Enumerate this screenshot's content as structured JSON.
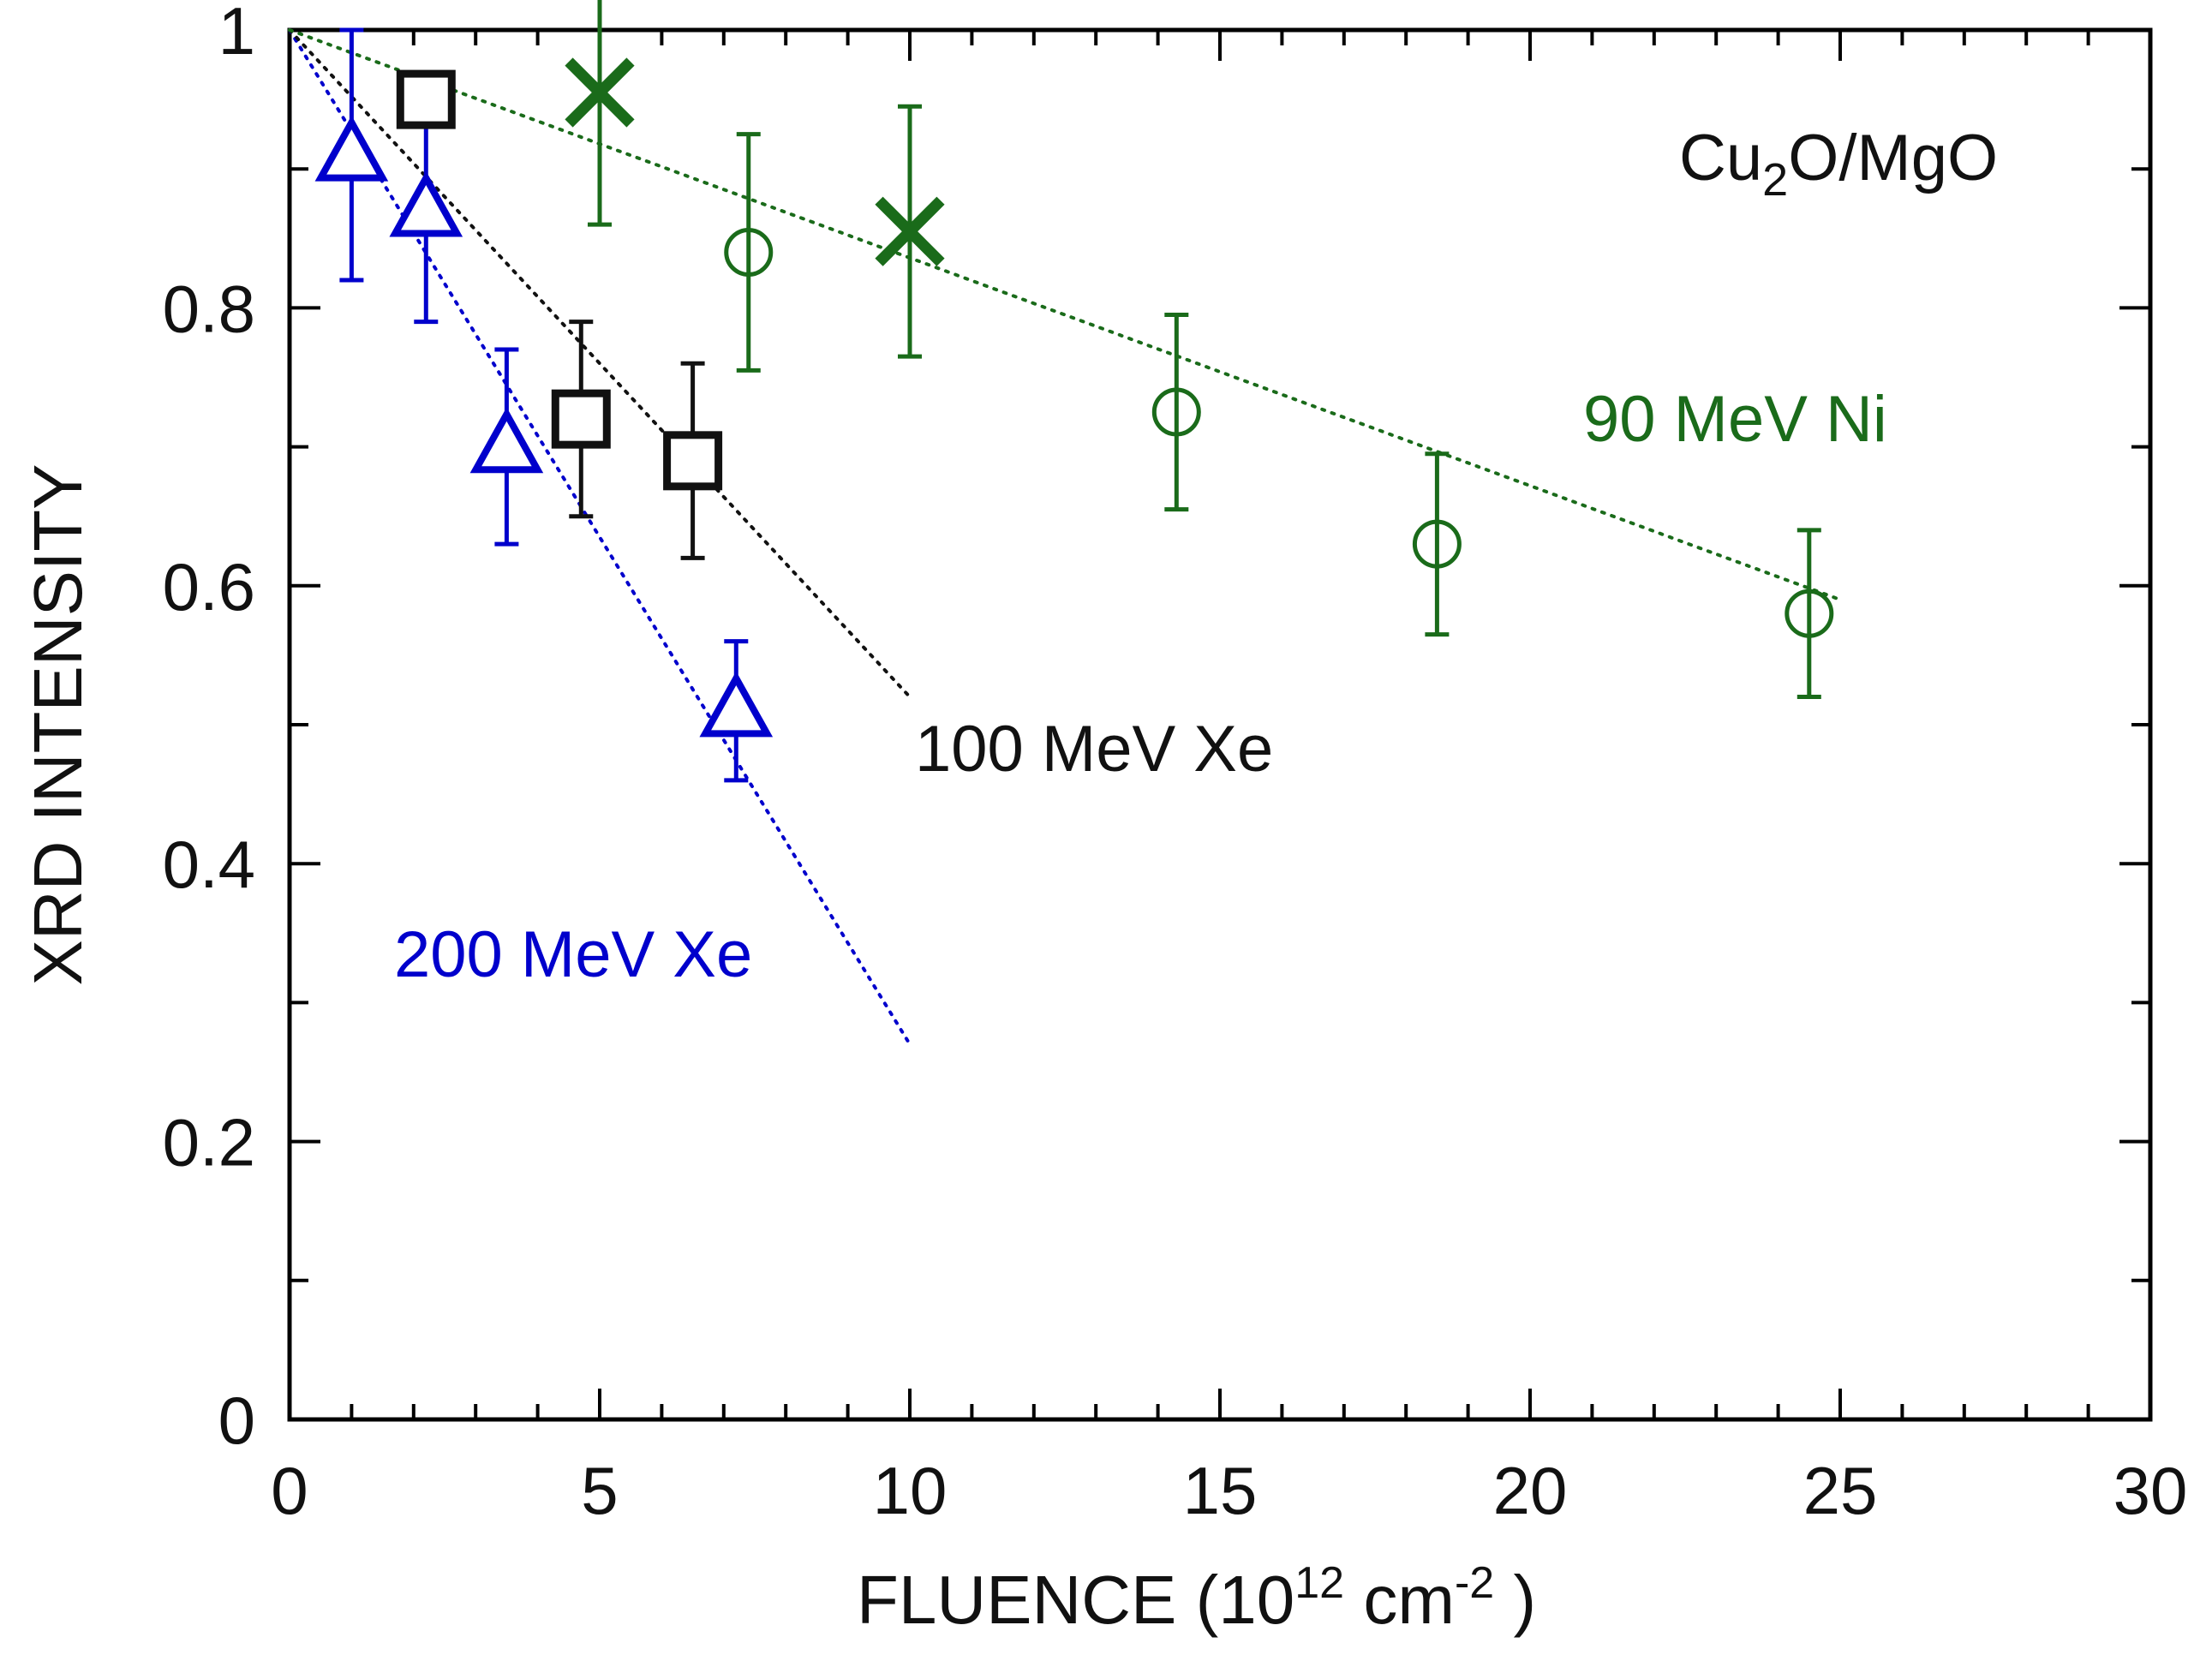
{
  "chart_data": {
    "type": "scatter",
    "xlabel_parts": {
      "main": "FLUENCE  (10",
      "sup1": "12",
      "mid": " cm",
      "sup2": "-2",
      "end": " )"
    },
    "ylabel": "XRD  INTENSITY",
    "xlim": [
      0,
      30
    ],
    "ylim": [
      0,
      1
    ],
    "x_ticks": [
      "0",
      "5",
      "10",
      "15",
      "20",
      "25",
      "30"
    ],
    "y_ticks": [
      "0",
      "0.2",
      "0.4",
      "0.6",
      "0.8",
      "1"
    ],
    "sample_label_parts": {
      "a": "Cu",
      "sub": "2",
      "b": "O/MgO"
    },
    "series": [
      {
        "name": "200 MeV Xe",
        "color": "#0000cc",
        "marker": "triangle",
        "points": [
          {
            "x": 1.0,
            "y": 0.91,
            "err": 0.09
          },
          {
            "x": 2.2,
            "y": 0.87,
            "err": 0.08
          },
          {
            "x": 3.5,
            "y": 0.7,
            "err": 0.07
          },
          {
            "x": 7.2,
            "y": 0.51,
            "err": 0.05
          }
        ],
        "fit": [
          [
            0,
            1.0
          ],
          [
            10,
            0.27
          ]
        ]
      },
      {
        "name": "100 MeV Xe",
        "color": "#111111",
        "marker": "square",
        "points": [
          {
            "x": 2.2,
            "y": 0.95,
            "err": 0.0
          },
          {
            "x": 4.7,
            "y": 0.72,
            "err": 0.07
          },
          {
            "x": 6.5,
            "y": 0.69,
            "err": 0.07
          }
        ],
        "fit": [
          [
            0,
            1.0
          ],
          [
            10,
            0.52
          ]
        ]
      },
      {
        "name": "90 MeV Ni",
        "color": "#1a6b1a",
        "marker": "circle",
        "points": [
          {
            "x": 7.4,
            "y": 0.84,
            "err": 0.085
          },
          {
            "x": 14.3,
            "y": 0.725,
            "err": 0.07
          },
          {
            "x": 18.5,
            "y": 0.63,
            "err": 0.065
          },
          {
            "x": 24.5,
            "y": 0.58,
            "err": 0.06
          }
        ],
        "fit": [
          [
            0,
            1.0
          ],
          [
            25,
            0.59
          ]
        ]
      },
      {
        "name": "90 MeV Ni",
        "color": "#1a6b1a",
        "marker": "x",
        "points": [
          {
            "x": 5.0,
            "y": 0.955,
            "err": 0.095
          },
          {
            "x": 10.0,
            "y": 0.855,
            "err": 0.09
          }
        ]
      }
    ],
    "annotations": [
      {
        "text": "200 MeV Xe",
        "color": "#0000cc"
      },
      {
        "text": "100 MeV Xe",
        "color": "#111111"
      },
      {
        "text": "90 MeV Ni",
        "color": "#1a6b1a"
      }
    ]
  }
}
